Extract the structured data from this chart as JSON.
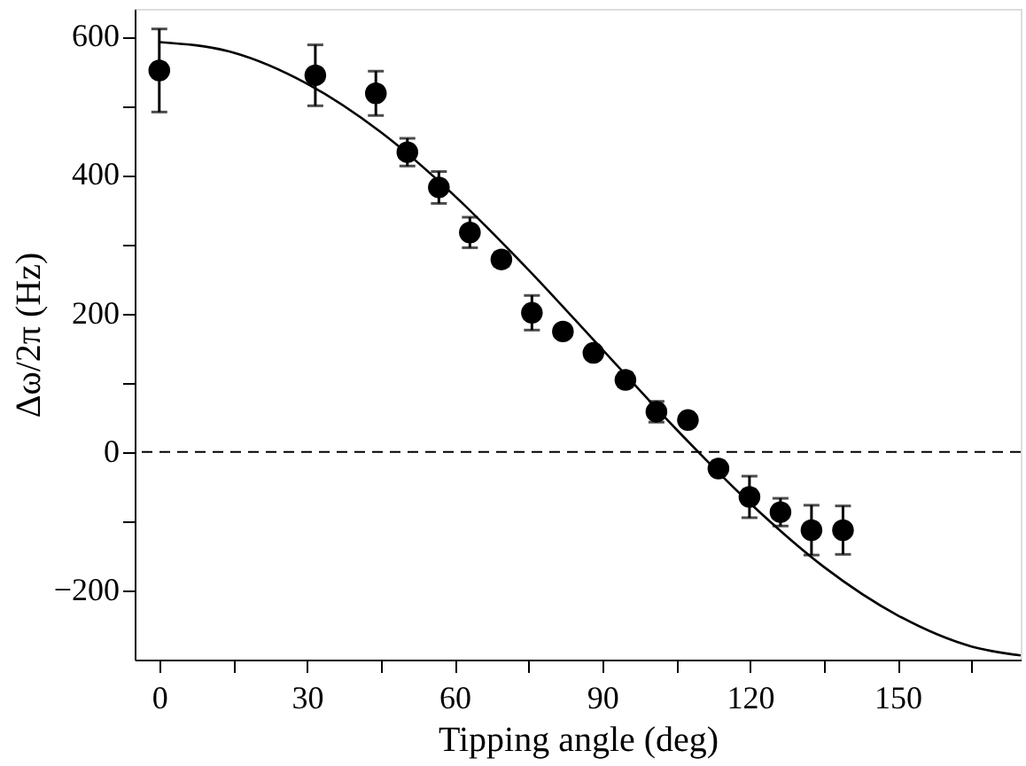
{
  "chart_data": {
    "type": "scatter",
    "xlabel": "Tipping angle  (deg)",
    "ylabel": "Δω/2π  (Hz)",
    "xlim": [
      -5,
      175
    ],
    "ylim": [
      -300,
      640
    ],
    "xticks": [
      0,
      {
        "value": 15,
        "label": null
      },
      30,
      {
        "value": 45,
        "label": null
      },
      60,
      {
        "value": 75,
        "label": null
      },
      90,
      {
        "value": 105,
        "label": null
      },
      120,
      {
        "value": 135,
        "label": null
      },
      150,
      {
        "value": 165,
        "label": null
      }
    ],
    "yticks": [
      {
        "value": -200,
        "label": "−200"
      },
      {
        "value": -100,
        "label": null
      },
      0,
      {
        "value": 100,
        "label": null
      },
      200,
      {
        "value": 300,
        "label": null
      },
      400,
      {
        "value": 500,
        "label": null
      },
      600
    ],
    "grid": false,
    "marker": "circle",
    "series": [
      {
        "color": "#000000",
        "x": [
          0,
          31.7,
          44,
          50.4,
          56.8,
          63.1,
          69.5,
          75.7,
          82,
          88.2,
          94.7,
          101,
          107.4,
          113.6,
          119.9,
          126.2,
          132.5,
          138.9
        ],
        "values": [
          551,
          544,
          518,
          433,
          382,
          317,
          278,
          201,
          174,
          143,
          104,
          58,
          46,
          -24,
          -65,
          -87,
          -113,
          -113
        ],
        "errors": [
          60,
          44,
          32,
          20,
          23,
          22,
          10,
          25,
          null,
          null,
          10,
          15,
          null,
          null,
          30,
          20,
          36,
          35
        ]
      },
      {
        "type": "line",
        "color": "#000000",
        "marker": "none",
        "line_style": "solid",
        "x": [
          0,
          15,
          30,
          45,
          60,
          75,
          90,
          105,
          120,
          135,
          150,
          165,
          175
        ],
        "values": [
          592,
          577,
          532,
          462,
          370,
          263,
          148,
          33,
          -74,
          -166,
          -236,
          -281,
          -294
        ]
      }
    ],
    "ref_lines": [
      {
        "axis": "y",
        "value": 0,
        "label": null,
        "color": "#000000",
        "line_style": "dashed"
      }
    ]
  }
}
